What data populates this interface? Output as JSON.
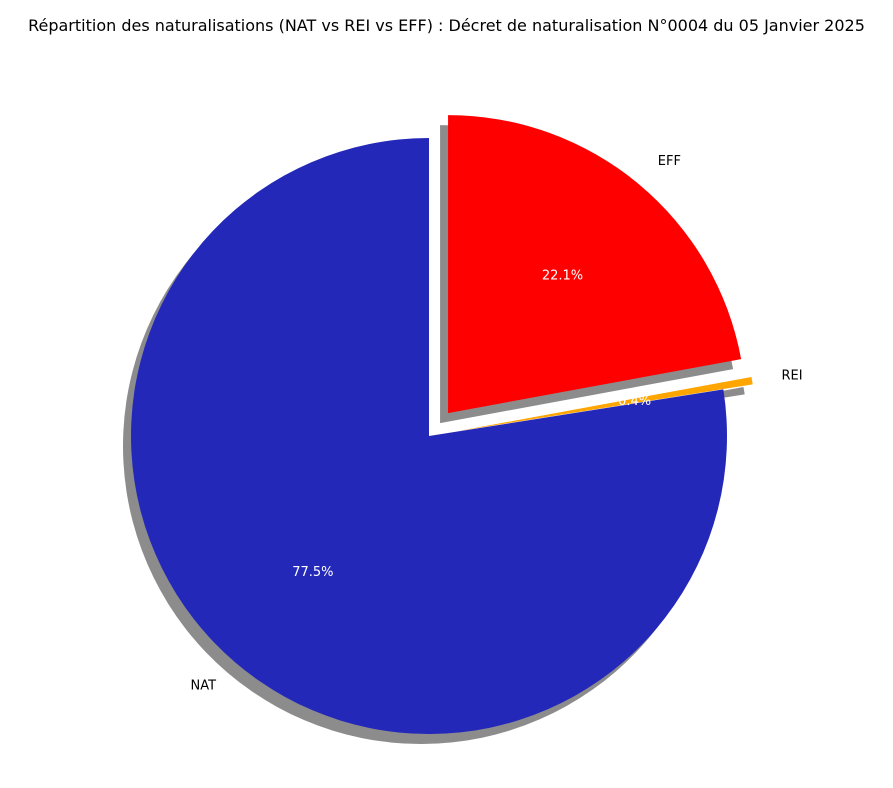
{
  "chart_data": {
    "type": "pie",
    "title": "Répartition des naturalisations (NAT vs REI vs EFF) : Décret de naturalisation N°0004 du 05 Janvier 2025",
    "slices": [
      {
        "label": "NAT",
        "value": 77.5,
        "pct_label": "77.5%",
        "color": "#2428b9",
        "exploded": false
      },
      {
        "label": "REI",
        "value": 0.4,
        "pct_label": "0.4%",
        "color": "#ffa500",
        "exploded": true
      },
      {
        "label": "EFF",
        "value": 22.1,
        "pct_label": "22.1%",
        "color": "#ff0000",
        "exploded": true
      }
    ],
    "shadow": true,
    "start_angle_deg": 90,
    "direction": "counterclockwise"
  }
}
